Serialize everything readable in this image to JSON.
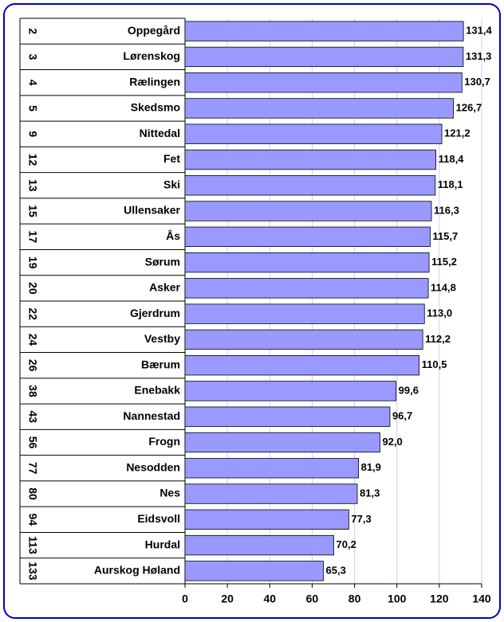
{
  "chart_data": {
    "type": "bar",
    "orientation": "horizontal",
    "ranks": [
      "2",
      "3",
      "4",
      "5",
      "9",
      "12",
      "13",
      "15",
      "17",
      "19",
      "20",
      "22",
      "24",
      "26",
      "38",
      "43",
      "56",
      "77",
      "80",
      "94",
      "113",
      "133"
    ],
    "categories": [
      "Oppegård",
      "Lørenskog",
      "Rælingen",
      "Skedsmo",
      "Nittedal",
      "Fet",
      "Ski",
      "Ullensaker",
      "Ås",
      "Sørum",
      "Asker",
      "Gjerdrum",
      "Vestby",
      "Bærum",
      "Enebakk",
      "Nannestad",
      "Frogn",
      "Nesodden",
      "Nes",
      "Eidsvoll",
      "Hurdal",
      "Aurskog Høland"
    ],
    "values": [
      131.4,
      131.3,
      130.7,
      126.7,
      121.2,
      118.4,
      118.1,
      116.3,
      115.7,
      115.2,
      114.8,
      113.0,
      112.2,
      110.5,
      99.6,
      96.7,
      92.0,
      81.9,
      81.3,
      77.3,
      70.2,
      65.3
    ],
    "value_labels": [
      "131,4",
      "131,3",
      "130,7",
      "126,7",
      "121,2",
      "118,4",
      "118,1",
      "116,3",
      "115,7",
      "115,2",
      "114,8",
      "113,0",
      "112,2",
      "110,5",
      "99,6",
      "96,7",
      "92,0",
      "81,9",
      "81,3",
      "77,3",
      "70,2",
      "65,3"
    ],
    "color": "#9999ff",
    "xlim": [
      0,
      140
    ],
    "xticks": [
      0,
      20,
      40,
      60,
      80,
      100,
      120,
      140
    ],
    "grid": true
  }
}
